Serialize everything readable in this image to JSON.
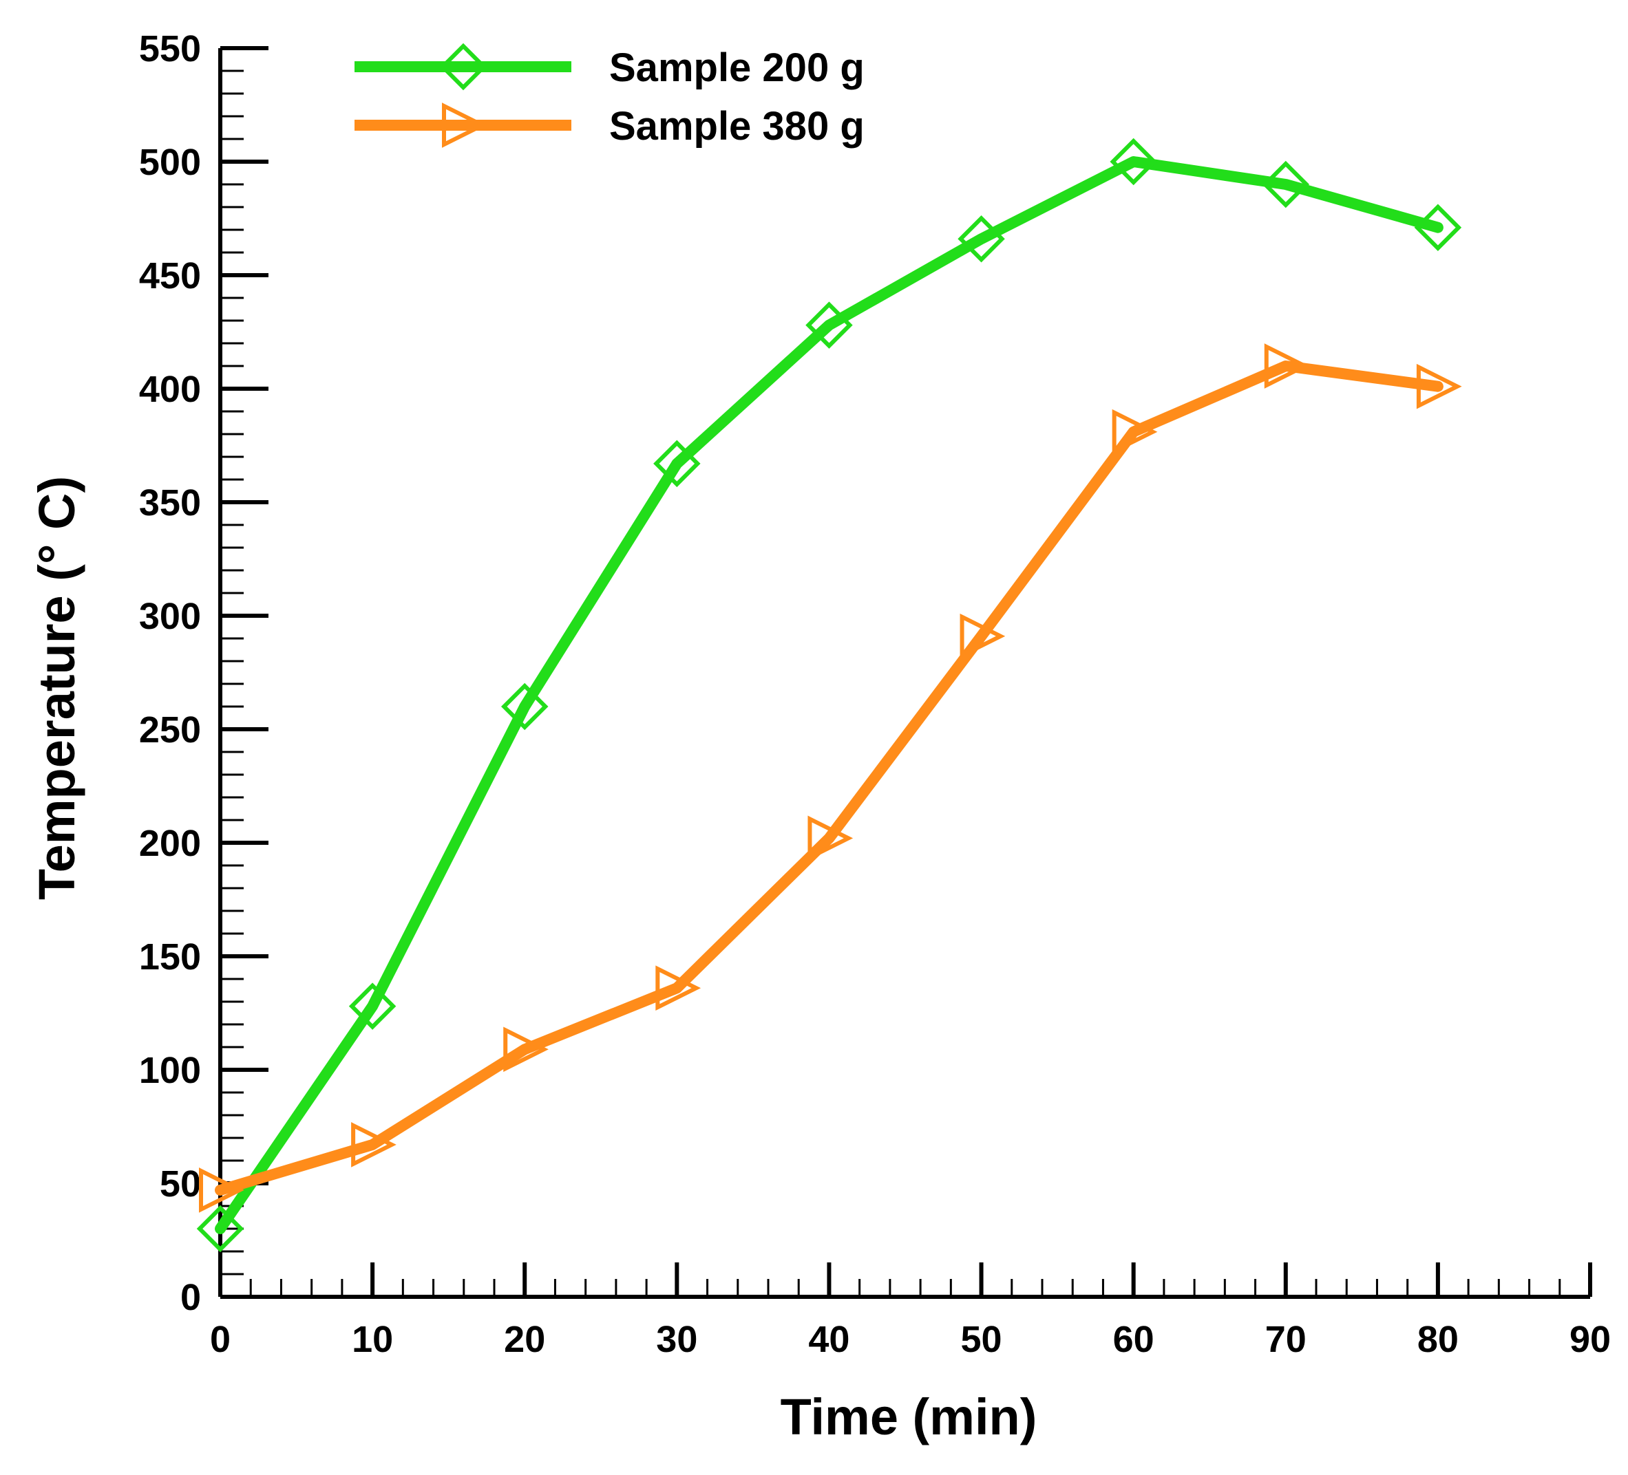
{
  "chart_data": {
    "type": "line",
    "xlabel": "Time (min)",
    "ylabel": "Temperature (° C)",
    "xlim": [
      0,
      90
    ],
    "ylim": [
      0,
      550
    ],
    "x_ticks": [
      0,
      10,
      20,
      30,
      40,
      50,
      60,
      70,
      80,
      90
    ],
    "y_ticks": [
      0,
      50,
      100,
      150,
      200,
      250,
      300,
      350,
      400,
      450,
      500,
      550
    ],
    "x_minor_step": 2,
    "y_minor_step": 10,
    "grid": false,
    "legend_position": "top-left",
    "series": [
      {
        "name": "Sample 200 g",
        "color": "#22dd1a",
        "marker": "diamond",
        "x": [
          0,
          10,
          20,
          30,
          40,
          50,
          60,
          70,
          80
        ],
        "y": [
          30,
          128,
          260,
          367,
          428,
          466,
          500,
          490,
          471
        ]
      },
      {
        "name": "Sample 380 g",
        "color": "#ff8c1a",
        "marker": "triangle-right",
        "x": [
          0,
          10,
          20,
          30,
          40,
          50,
          60,
          70,
          80
        ],
        "y": [
          47,
          67,
          109,
          136,
          202,
          291,
          381,
          410,
          401
        ]
      }
    ]
  }
}
